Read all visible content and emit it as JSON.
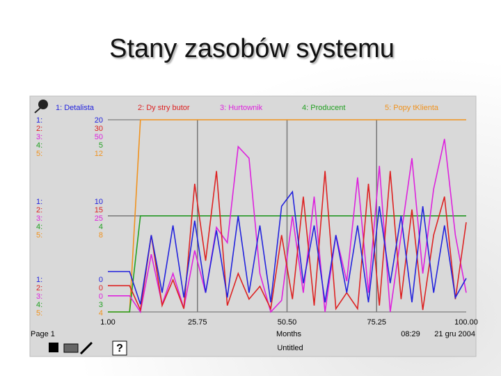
{
  "chart_data": {
    "type": "line",
    "title": "Stany zasobów systemu",
    "x_label": "Months",
    "page_label": "Page 1",
    "time": "08:29",
    "date": "21 gru 2004",
    "document_name": "Untitled",
    "x": [
      1,
      4,
      7,
      10,
      13,
      16,
      19,
      22,
      25,
      28,
      31,
      34,
      37,
      40,
      43,
      46,
      49,
      52,
      55,
      58,
      61,
      64,
      67,
      70,
      73,
      76,
      79,
      82,
      85,
      88,
      91,
      94,
      97,
      100
    ],
    "xlim": [
      1,
      100
    ],
    "xticks": [
      {
        "value": 1,
        "label": "1.00"
      },
      {
        "value": 25.75,
        "label": "25.75"
      },
      {
        "value": 50.5,
        "label": "50.50"
      },
      {
        "value": 75.25,
        "label": "75.25"
      },
      {
        "value": 100,
        "label": "100.00"
      }
    ],
    "grid": true,
    "series": [
      {
        "key": "1:",
        "name": "1: Detalista",
        "color": "#2222dd",
        "ylim": [
          0,
          20
        ],
        "yticks": [
          0,
          10,
          20
        ],
        "values": [
          4.2,
          4.2,
          4.2,
          0.8,
          8,
          2,
          9,
          1.5,
          9.5,
          2,
          8.5,
          1.5,
          10,
          2,
          9,
          1,
          11,
          12.5,
          3,
          9,
          1,
          8,
          2,
          9,
          1,
          11,
          3,
          10,
          1,
          11,
          2,
          9,
          1.5,
          3.5
        ]
      },
      {
        "key": "2:",
        "name": "2: Dy stry butor",
        "color": "#dd2222",
        "ylim": [
          0,
          30
        ],
        "yticks": [
          0,
          15,
          30
        ],
        "values": [
          4.1,
          4.1,
          4.1,
          0.3,
          12,
          1,
          5,
          0.5,
          20,
          8,
          22,
          1,
          6,
          2,
          4,
          0.5,
          12,
          2,
          18,
          1,
          22,
          0.5,
          3,
          0.5,
          20,
          1,
          22,
          2,
          16,
          0.3,
          12,
          18,
          2,
          14
        ]
      },
      {
        "key": "3:",
        "name": "3: Hurtownik",
        "color": "#dd22dd",
        "ylim": [
          0,
          50
        ],
        "yticks": [
          0,
          25,
          50
        ],
        "values": [
          4.2,
          4.2,
          4.2,
          0,
          15,
          2,
          10,
          1,
          16,
          5,
          22,
          18,
          43,
          40,
          10,
          0,
          3,
          25,
          5,
          30,
          0,
          20,
          8,
          35,
          5,
          38,
          0,
          20,
          40,
          10,
          32,
          45,
          20,
          5
        ]
      },
      {
        "key": "4:",
        "name": "4: Producent",
        "color": "#22a022",
        "ylim": [
          3,
          5
        ],
        "yticks": [
          3,
          4,
          5
        ],
        "values": [
          3,
          3,
          3,
          4,
          4,
          4,
          4,
          4,
          4,
          4,
          4,
          4,
          4,
          4,
          4,
          4,
          4,
          4,
          4,
          4,
          4,
          4,
          4,
          4,
          4,
          4,
          4,
          4,
          4,
          4,
          4,
          4,
          4,
          4
        ]
      },
      {
        "key": "5:",
        "name": "5: Popy tKlienta",
        "color": "#f0921e",
        "ylim": [
          4,
          12
        ],
        "yticks": [
          4,
          8,
          12
        ],
        "values": [
          4,
          4,
          4,
          12,
          12,
          12,
          12,
          12,
          12,
          12,
          12,
          12,
          12,
          12,
          12,
          12,
          12,
          12,
          12,
          12,
          12,
          12,
          12,
          12,
          12,
          12,
          12,
          12,
          12,
          12,
          12,
          12,
          12,
          12
        ]
      }
    ]
  }
}
